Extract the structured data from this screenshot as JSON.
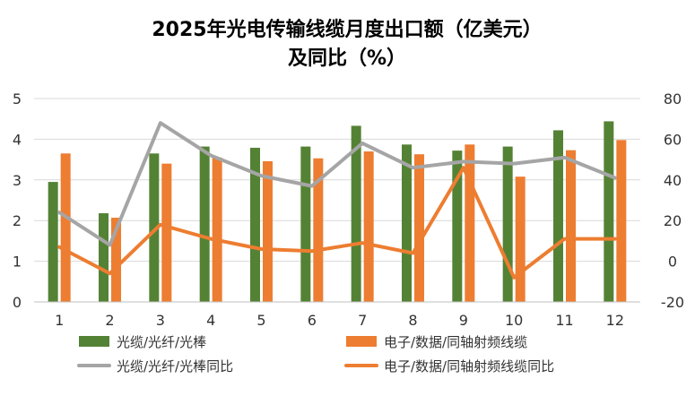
{
  "chart_data": {
    "type": "bar+line",
    "title": "2025年光电传输线缆月度出口额（亿美元）",
    "subtitle": "及同比（%）",
    "categories": [
      "1",
      "2",
      "3",
      "4",
      "5",
      "6",
      "7",
      "8",
      "9",
      "10",
      "11",
      "12"
    ],
    "left_axis": {
      "min": 0,
      "max": 5,
      "ticks": [
        "0",
        "1",
        "2",
        "3",
        "4",
        "5"
      ]
    },
    "right_axis": {
      "min": -20,
      "max": 80,
      "ticks": [
        "-20",
        "0",
        "20",
        "40",
        "60",
        "80"
      ]
    },
    "bar_series": [
      {
        "name": "光缆/光纤/光棒",
        "color": "#548235",
        "values": [
          2.95,
          2.18,
          3.65,
          3.82,
          3.79,
          3.82,
          4.33,
          3.87,
          3.72,
          3.82,
          4.22,
          4.44
        ]
      },
      {
        "name": "电子/数据/同轴射频线缆",
        "color": "#ED7D31",
        "values": [
          3.65,
          2.07,
          3.4,
          3.55,
          3.46,
          3.53,
          3.7,
          3.63,
          3.87,
          3.08,
          3.73,
          3.98
        ]
      }
    ],
    "line_series": [
      {
        "name": "光缆/光纤/光棒同比",
        "color": "#A5A5A5",
        "values": [
          24,
          8,
          68,
          52,
          42,
          37,
          58,
          46,
          49,
          48,
          51,
          41
        ]
      },
      {
        "name": "电子/数据/同轴射频线缆同比",
        "color": "#ED7D31",
        "values": [
          7,
          -6,
          18,
          11,
          6,
          5,
          9,
          4,
          46,
          -8,
          11,
          11
        ]
      }
    ],
    "grid": true,
    "legend_position": "bottom"
  }
}
